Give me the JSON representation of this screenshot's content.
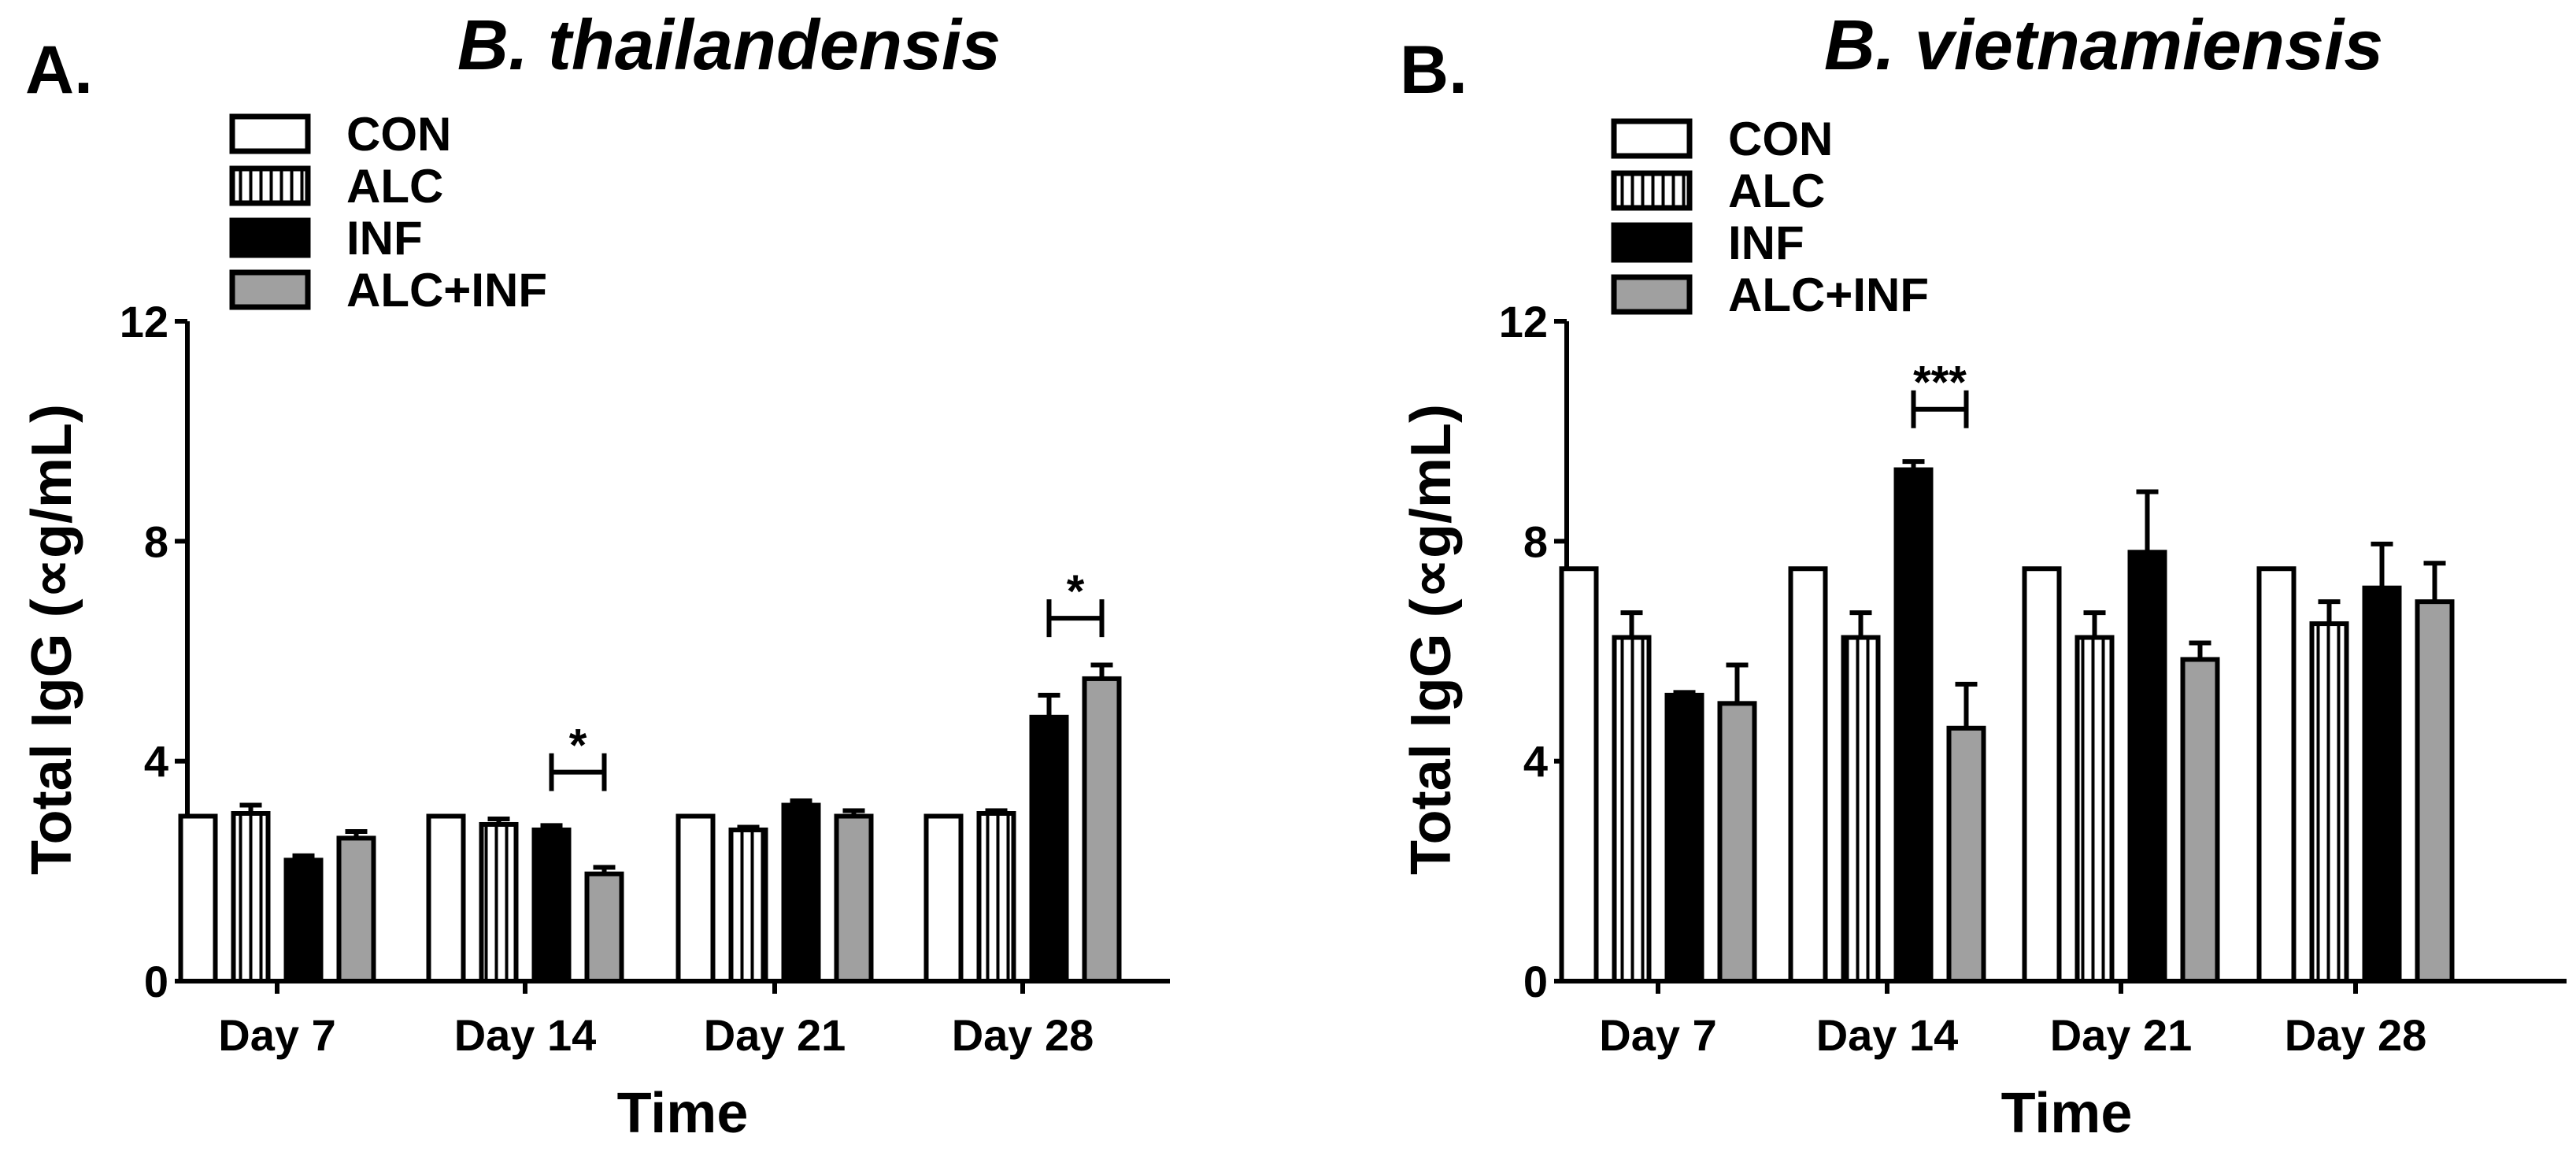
{
  "colors": {
    "CON": "#ffffff",
    "ALC": "#ffffff",
    "INF": "#000000",
    "ALC+INF": "#a0a0a0",
    "stroke": "#000000"
  },
  "chart_data": [
    {
      "type": "bar",
      "panel": "A.",
      "title": "B. thailandensis",
      "xlabel": "Time",
      "ylabel": "Total IgG (∝g/mL)",
      "ylim": [
        0,
        12
      ],
      "yticks": [
        "0",
        "4",
        "8",
        "12"
      ],
      "categories": [
        "Day 7",
        "Day 14",
        "Day 21",
        "Day 28"
      ],
      "legend": [
        "CON",
        "ALC",
        "INF",
        "ALC+INF"
      ],
      "series": [
        {
          "name": "CON",
          "values": [
            3.0,
            3.0,
            3.0,
            3.0
          ],
          "errors": [
            0,
            0,
            0,
            0
          ]
        },
        {
          "name": "ALC",
          "values": [
            3.05,
            2.85,
            2.75,
            3.05
          ],
          "errors": [
            0.15,
            0.1,
            0.05,
            0.05
          ]
        },
        {
          "name": "INF",
          "values": [
            2.2,
            2.75,
            3.2,
            4.8
          ],
          "errors": [
            0.08,
            0.08,
            0.08,
            0.4
          ]
        },
        {
          "name": "ALC+INF",
          "values": [
            2.6,
            1.95,
            3.0,
            5.5
          ],
          "errors": [
            0.12,
            0.12,
            0.1,
            0.25
          ]
        }
      ],
      "significance": [
        {
          "category": "Day 14",
          "between": [
            "INF",
            "ALC+INF"
          ],
          "label": "*",
          "y": 3.8
        },
        {
          "category": "Day 28",
          "between": [
            "INF",
            "ALC+INF"
          ],
          "label": "*",
          "y": 6.6
        }
      ]
    },
    {
      "type": "bar",
      "panel": "B.",
      "title": "B. vietnamiensis",
      "xlabel": "Time",
      "ylabel": "Total IgG (∝g/mL)",
      "ylim": [
        0,
        12
      ],
      "yticks": [
        "0",
        "4",
        "8",
        "12"
      ],
      "categories": [
        "Day 7",
        "Day 14",
        "Day 21",
        "Day 28"
      ],
      "legend": [
        "CON",
        "ALC",
        "INF",
        "ALC+INF"
      ],
      "series": [
        {
          "name": "CON",
          "values": [
            7.5,
            7.5,
            7.5,
            7.5
          ],
          "errors": [
            0,
            0,
            0,
            0
          ]
        },
        {
          "name": "ALC",
          "values": [
            6.25,
            6.25,
            6.25,
            6.5
          ],
          "errors": [
            0.45,
            0.45,
            0.45,
            0.4
          ]
        },
        {
          "name": "INF",
          "values": [
            5.2,
            9.3,
            7.8,
            7.15
          ],
          "errors": [
            0.05,
            0.15,
            1.1,
            0.8
          ]
        },
        {
          "name": "ALC+INF",
          "values": [
            5.05,
            4.6,
            5.85,
            6.9
          ],
          "errors": [
            0.7,
            0.8,
            0.3,
            0.7
          ]
        }
      ],
      "significance": [
        {
          "category": "Day 14",
          "between": [
            "INF",
            "ALC+INF"
          ],
          "label": "***",
          "y": 10.4
        }
      ]
    }
  ]
}
